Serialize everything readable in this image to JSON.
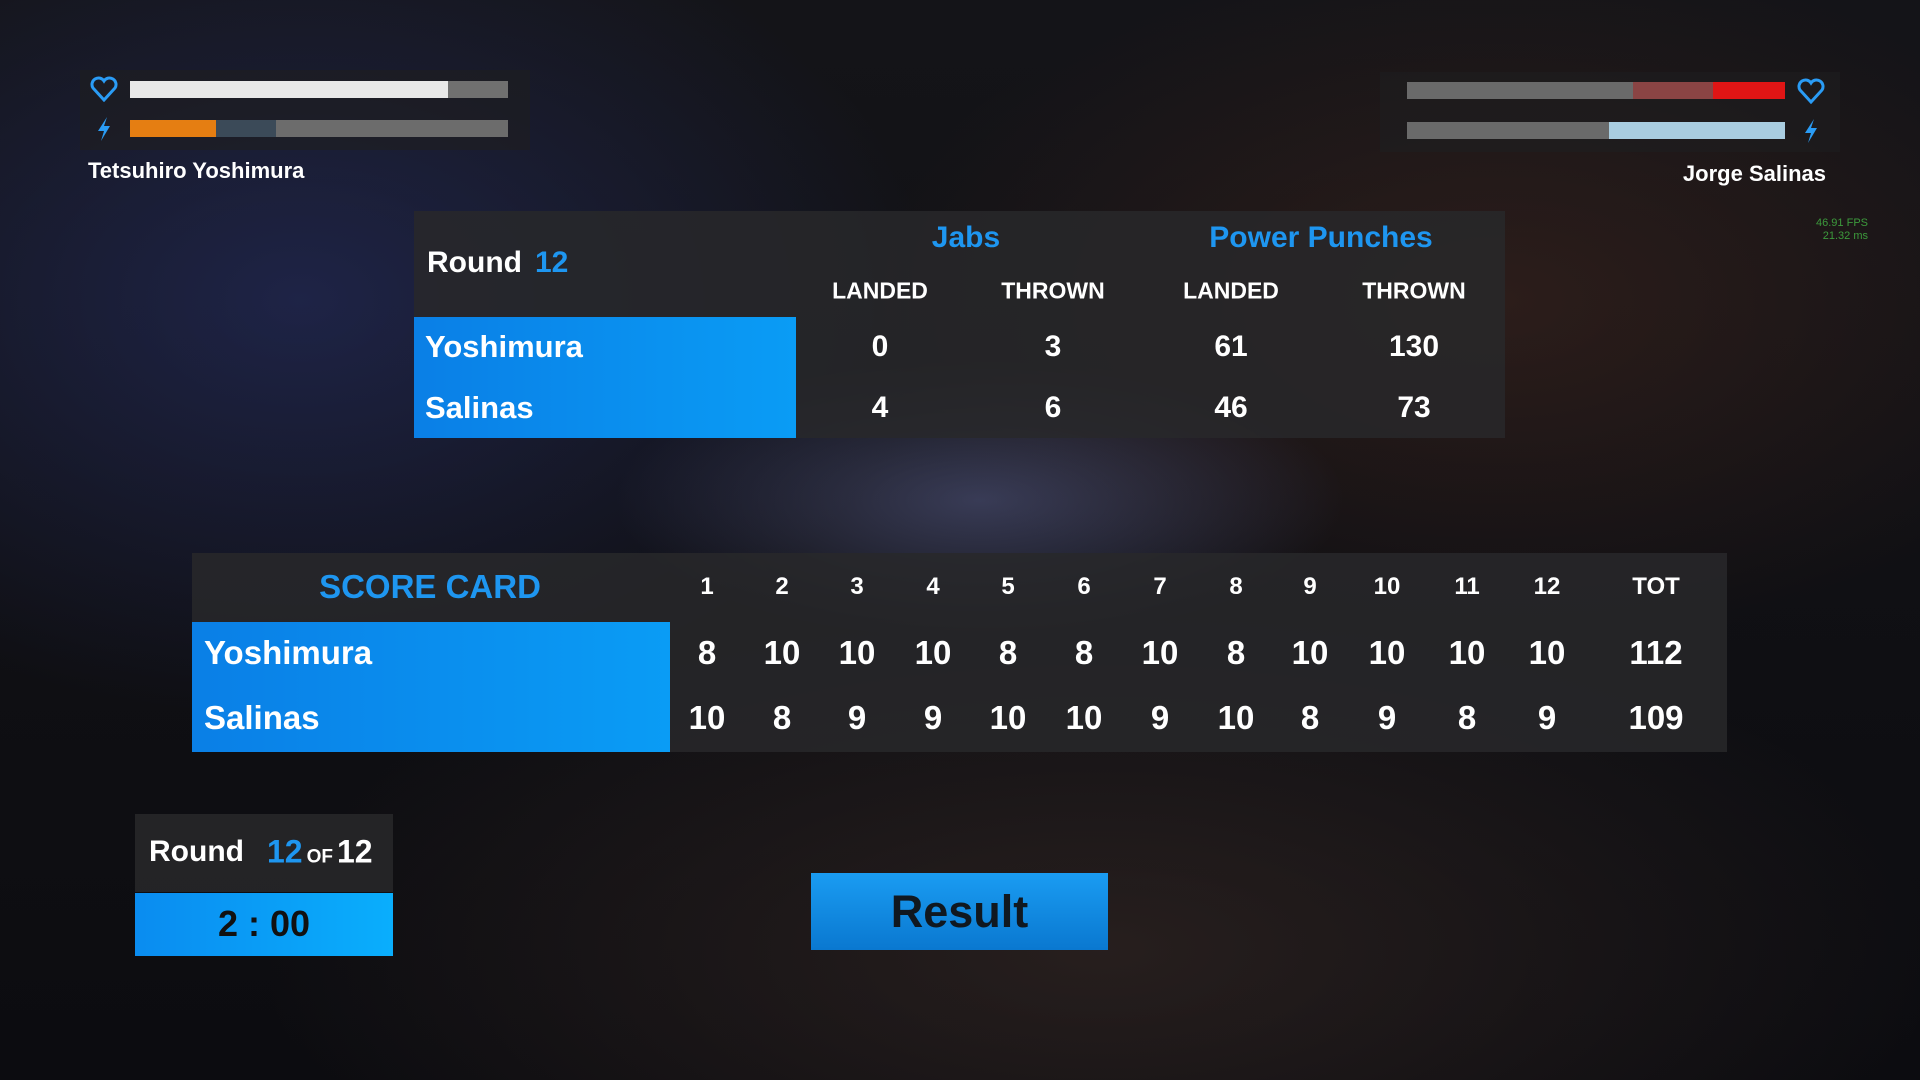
{
  "hud": {
    "left_name": "Tetsuhiro  Yoshimura",
    "right_name": "Jorge  Salinas",
    "fps": "46.91 FPS",
    "ms": "21.32 ms"
  },
  "stats": {
    "round_label": "Round",
    "round": "12",
    "groups": [
      "Jabs",
      "Power Punches"
    ],
    "columns": [
      "LANDED",
      "THROWN",
      "LANDED",
      "THROWN"
    ],
    "rows": [
      {
        "name": "Yoshimura",
        "values": [
          0,
          3,
          61,
          130
        ]
      },
      {
        "name": "Salinas",
        "values": [
          4,
          6,
          46,
          73
        ]
      }
    ]
  },
  "scorecard": {
    "title": "SCORE CARD",
    "columns": [
      "1",
      "2",
      "3",
      "4",
      "5",
      "6",
      "7",
      "8",
      "9",
      "10",
      "11",
      "12",
      "TOT"
    ],
    "rows": [
      {
        "name": "Yoshimura",
        "values": [
          8,
          10,
          10,
          10,
          8,
          8,
          10,
          8,
          10,
          10,
          10,
          10,
          112
        ]
      },
      {
        "name": "Salinas",
        "values": [
          10,
          8,
          9,
          9,
          10,
          10,
          9,
          10,
          8,
          9,
          8,
          9,
          109
        ]
      }
    ]
  },
  "round_info": {
    "label": "Round",
    "current": "12",
    "of": "OF",
    "total": "12",
    "clock": "2 : 00"
  },
  "button": "Result"
}
